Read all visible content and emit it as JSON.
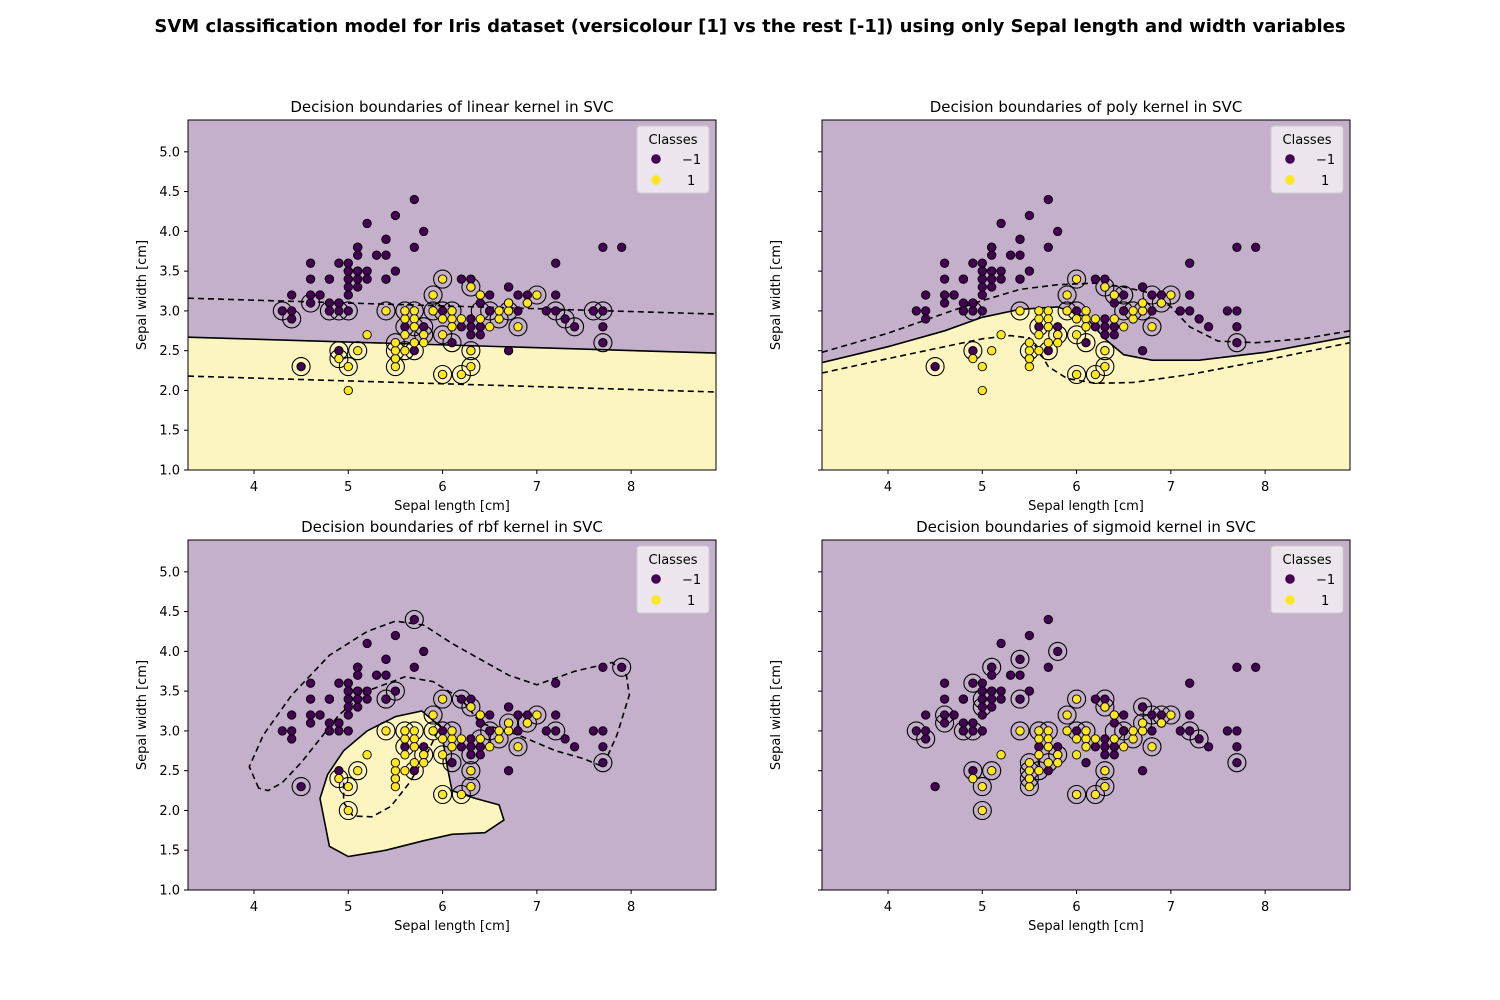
{
  "figure": {
    "suptitle": "SVM classification model for Iris dataset (versicolour [1] vs the rest [-1]) using only Sepal length and width variables"
  },
  "colors": {
    "background_neg": "#c5b0cb",
    "background_pos": "#fdf5bf",
    "class_neg": "#440154",
    "class_pos": "#fde725",
    "edge": "#000000",
    "legend_bg": "#f2eef3"
  },
  "chart_data": [
    {
      "type": "scatter",
      "title": "Decision boundaries of linear kernel in SVC",
      "xlabel": "Sepal length [cm]",
      "ylabel": "Sepal width [cm]",
      "xlim": [
        3.3,
        8.9
      ],
      "ylim": [
        1.0,
        5.4
      ],
      "xticks": [
        "4",
        "5",
        "6",
        "7",
        "8"
      ],
      "yticks": [
        "1.0",
        "1.5",
        "2.0",
        "2.5",
        "3.0",
        "3.5",
        "4.0",
        "4.5",
        "5.0"
      ],
      "show_ytick_labels": true,
      "legend": {
        "title": "Classes",
        "entries": [
          "−1",
          "1"
        ],
        "position": "upper right"
      },
      "decision_function": {
        "kind": "linear",
        "boundary_at": [
          [
            3.3,
            2.67
          ],
          [
            8.9,
            2.47
          ]
        ],
        "margin_offset": 0.49
      }
    },
    {
      "type": "scatter",
      "title": "Decision boundaries of poly kernel in SVC",
      "xlabel": "Sepal length [cm]",
      "ylabel": "Sepal width [cm]",
      "xlim": [
        3.3,
        8.9
      ],
      "ylim": [
        1.0,
        5.4
      ],
      "xticks": [
        "4",
        "5",
        "6",
        "7",
        "8"
      ],
      "yticks": [
        "1.0",
        "1.5",
        "2.0",
        "2.5",
        "3.0",
        "3.5",
        "4.0",
        "4.5",
        "5.0"
      ],
      "show_ytick_labels": false,
      "legend": {
        "title": "Classes",
        "entries": [
          "−1",
          "1"
        ],
        "position": "upper right"
      },
      "decision_function": {
        "kind": "poly"
      }
    },
    {
      "type": "scatter",
      "title": "Decision boundaries of rbf kernel in SVC",
      "xlabel": "Sepal length [cm]",
      "ylabel": "Sepal width [cm]",
      "xlim": [
        3.3,
        8.9
      ],
      "ylim": [
        1.0,
        5.4
      ],
      "xticks": [
        "4",
        "5",
        "6",
        "7",
        "8"
      ],
      "yticks": [
        "1.0",
        "1.5",
        "2.0",
        "2.5",
        "3.0",
        "3.5",
        "4.0",
        "4.5",
        "5.0"
      ],
      "show_ytick_labels": true,
      "legend": {
        "title": "Classes",
        "entries": [
          "−1",
          "1"
        ],
        "position": "upper right"
      },
      "decision_function": {
        "kind": "rbf"
      }
    },
    {
      "type": "scatter",
      "title": "Decision boundaries of sigmoid kernel in SVC",
      "xlabel": "Sepal length [cm]",
      "ylabel": "Sepal width [cm]",
      "xlim": [
        3.3,
        8.9
      ],
      "ylim": [
        1.0,
        5.4
      ],
      "xticks": [
        "4",
        "5",
        "6",
        "7",
        "8"
      ],
      "yticks": [
        "1.0",
        "1.5",
        "2.0",
        "2.5",
        "3.0",
        "3.5",
        "4.0",
        "4.5",
        "5.0"
      ],
      "show_ytick_labels": false,
      "legend": {
        "title": "Classes",
        "entries": [
          "−1",
          "1"
        ],
        "position": "upper right"
      },
      "decision_function": {
        "kind": "sigmoid"
      }
    }
  ],
  "points": {
    "class_neg": [
      [
        5.1,
        3.5
      ],
      [
        4.9,
        3.0
      ],
      [
        4.7,
        3.2
      ],
      [
        4.6,
        3.1
      ],
      [
        5.0,
        3.6
      ],
      [
        5.4,
        3.9
      ],
      [
        4.6,
        3.4
      ],
      [
        5.0,
        3.4
      ],
      [
        4.4,
        2.9
      ],
      [
        4.9,
        3.1
      ],
      [
        5.4,
        3.7
      ],
      [
        4.8,
        3.4
      ],
      [
        4.8,
        3.0
      ],
      [
        4.3,
        3.0
      ],
      [
        5.8,
        4.0
      ],
      [
        5.7,
        4.4
      ],
      [
        5.4,
        3.9
      ],
      [
        5.1,
        3.5
      ],
      [
        5.7,
        3.8
      ],
      [
        5.1,
        3.8
      ],
      [
        5.4,
        3.4
      ],
      [
        5.1,
        3.7
      ],
      [
        4.6,
        3.6
      ],
      [
        5.1,
        3.3
      ],
      [
        4.8,
        3.4
      ],
      [
        5.0,
        3.0
      ],
      [
        5.0,
        3.4
      ],
      [
        5.2,
        3.5
      ],
      [
        5.2,
        3.4
      ],
      [
        4.7,
        3.2
      ],
      [
        4.8,
        3.1
      ],
      [
        5.4,
        3.4
      ],
      [
        5.2,
        4.1
      ],
      [
        5.5,
        4.2
      ],
      [
        4.9,
        3.1
      ],
      [
        5.0,
        3.2
      ],
      [
        5.5,
        3.5
      ],
      [
        4.9,
        3.6
      ],
      [
        4.4,
        3.0
      ],
      [
        5.1,
        3.4
      ],
      [
        5.0,
        3.5
      ],
      [
        4.5,
        2.3
      ],
      [
        4.4,
        3.2
      ],
      [
        5.0,
        3.5
      ],
      [
        5.1,
        3.8
      ],
      [
        4.8,
        3.0
      ],
      [
        5.1,
        3.8
      ],
      [
        4.6,
        3.2
      ],
      [
        5.3,
        3.7
      ],
      [
        5.0,
        3.3
      ],
      [
        6.3,
        3.3
      ],
      [
        5.8,
        2.7
      ],
      [
        7.1,
        3.0
      ],
      [
        6.3,
        2.9
      ],
      [
        6.5,
        3.0
      ],
      [
        7.6,
        3.0
      ],
      [
        4.9,
        2.5
      ],
      [
        7.3,
        2.9
      ],
      [
        6.7,
        2.5
      ],
      [
        7.2,
        3.6
      ],
      [
        6.5,
        3.2
      ],
      [
        6.4,
        2.7
      ],
      [
        6.8,
        3.0
      ],
      [
        5.7,
        2.5
      ],
      [
        5.8,
        2.8
      ],
      [
        6.4,
        3.2
      ],
      [
        6.5,
        3.0
      ],
      [
        7.7,
        3.8
      ],
      [
        7.7,
        2.6
      ],
      [
        6.0,
        2.2
      ],
      [
        6.9,
        3.2
      ],
      [
        5.6,
        2.8
      ],
      [
        7.7,
        2.8
      ],
      [
        6.3,
        2.7
      ],
      [
        6.7,
        3.3
      ],
      [
        7.2,
        3.2
      ],
      [
        6.2,
        2.8
      ],
      [
        6.1,
        3.0
      ],
      [
        6.4,
        2.8
      ],
      [
        7.2,
        3.0
      ],
      [
        7.4,
        2.8
      ],
      [
        7.9,
        3.8
      ],
      [
        6.4,
        2.8
      ],
      [
        6.3,
        2.8
      ],
      [
        6.1,
        2.6
      ],
      [
        7.7,
        3.0
      ],
      [
        6.3,
        3.4
      ],
      [
        6.4,
        3.1
      ],
      [
        6.0,
        3.0
      ],
      [
        6.9,
        3.1
      ],
      [
        6.7,
        3.1
      ],
      [
        6.9,
        3.1
      ],
      [
        5.8,
        2.7
      ],
      [
        6.8,
        3.2
      ],
      [
        6.7,
        3.3
      ],
      [
        6.7,
        3.0
      ],
      [
        6.3,
        2.5
      ],
      [
        6.5,
        3.0
      ],
      [
        6.2,
        3.4
      ],
      [
        5.9,
        3.0
      ]
    ],
    "class_pos": [
      [
        7.0,
        3.2
      ],
      [
        6.4,
        3.2
      ],
      [
        6.9,
        3.1
      ],
      [
        5.5,
        2.3
      ],
      [
        6.5,
        2.8
      ],
      [
        5.7,
        2.8
      ],
      [
        6.3,
        3.3
      ],
      [
        4.9,
        2.4
      ],
      [
        6.6,
        2.9
      ],
      [
        5.2,
        2.7
      ],
      [
        5.0,
        2.0
      ],
      [
        5.9,
        3.0
      ],
      [
        6.0,
        2.2
      ],
      [
        6.1,
        2.9
      ],
      [
        5.6,
        2.9
      ],
      [
        6.7,
        3.1
      ],
      [
        5.6,
        3.0
      ],
      [
        5.8,
        2.7
      ],
      [
        6.2,
        2.2
      ],
      [
        5.6,
        2.5
      ],
      [
        5.9,
        3.2
      ],
      [
        6.1,
        2.8
      ],
      [
        6.3,
        2.5
      ],
      [
        6.1,
        2.8
      ],
      [
        6.4,
        2.9
      ],
      [
        6.6,
        3.0
      ],
      [
        6.8,
        2.8
      ],
      [
        6.7,
        3.0
      ],
      [
        6.0,
        2.9
      ],
      [
        5.7,
        2.6
      ],
      [
        5.5,
        2.4
      ],
      [
        5.5,
        2.4
      ],
      [
        5.8,
        2.7
      ],
      [
        6.0,
        2.7
      ],
      [
        5.4,
        3.0
      ],
      [
        6.0,
        3.4
      ],
      [
        6.7,
        3.1
      ],
      [
        6.3,
        2.3
      ],
      [
        5.6,
        3.0
      ],
      [
        5.5,
        2.5
      ],
      [
        5.5,
        2.6
      ],
      [
        6.1,
        3.0
      ],
      [
        5.8,
        2.6
      ],
      [
        5.0,
        2.3
      ],
      [
        5.6,
        2.7
      ],
      [
        5.7,
        3.0
      ],
      [
        5.7,
        2.9
      ],
      [
        6.2,
        2.9
      ],
      [
        5.1,
        2.5
      ],
      [
        5.7,
        2.8
      ]
    ]
  },
  "support_vectors": {
    "linear": [
      [
        4.3,
        3.0
      ],
      [
        4.4,
        2.9
      ],
      [
        4.5,
        2.3
      ],
      [
        4.6,
        3.1
      ],
      [
        4.8,
        3.0
      ],
      [
        4.9,
        3.0
      ],
      [
        4.9,
        2.5
      ],
      [
        4.9,
        2.4
      ],
      [
        5.0,
        3.0
      ],
      [
        5.0,
        2.3
      ],
      [
        5.1,
        2.5
      ],
      [
        5.4,
        3.0
      ],
      [
        5.5,
        2.6
      ],
      [
        5.5,
        2.5
      ],
      [
        5.5,
        2.3
      ],
      [
        5.6,
        3.0
      ],
      [
        5.6,
        2.8
      ],
      [
        5.6,
        2.5
      ],
      [
        5.7,
        3.0
      ],
      [
        5.7,
        2.8
      ],
      [
        5.7,
        2.5
      ],
      [
        5.8,
        2.8
      ],
      [
        5.8,
        2.7
      ],
      [
        5.9,
        3.2
      ],
      [
        5.9,
        3.0
      ],
      [
        6.0,
        3.4
      ],
      [
        6.0,
        3.0
      ],
      [
        6.0,
        2.7
      ],
      [
        6.0,
        2.2
      ],
      [
        6.1,
        3.0
      ],
      [
        6.1,
        2.6
      ],
      [
        6.2,
        2.2
      ],
      [
        6.3,
        3.3
      ],
      [
        6.3,
        2.5
      ],
      [
        6.3,
        2.3
      ],
      [
        6.4,
        3.0
      ],
      [
        6.5,
        3.0
      ],
      [
        6.6,
        2.9
      ],
      [
        6.7,
        3.0
      ],
      [
        6.8,
        2.8
      ],
      [
        7.0,
        3.2
      ],
      [
        7.2,
        3.0
      ],
      [
        7.3,
        2.9
      ],
      [
        7.4,
        2.8
      ],
      [
        7.6,
        3.0
      ],
      [
        7.7,
        3.0
      ],
      [
        7.7,
        2.6
      ]
    ],
    "poly": [
      [
        4.5,
        2.3
      ],
      [
        4.9,
        3.0
      ],
      [
        4.9,
        2.5
      ],
      [
        5.4,
        3.0
      ],
      [
        5.5,
        2.5
      ],
      [
        5.6,
        2.8
      ],
      [
        5.7,
        2.5
      ],
      [
        5.8,
        2.7
      ],
      [
        5.9,
        3.2
      ],
      [
        5.9,
        3.0
      ],
      [
        6.0,
        3.4
      ],
      [
        6.0,
        3.0
      ],
      [
        6.0,
        2.7
      ],
      [
        6.0,
        2.2
      ],
      [
        6.1,
        2.6
      ],
      [
        6.2,
        2.2
      ],
      [
        6.3,
        3.3
      ],
      [
        6.3,
        2.5
      ],
      [
        6.3,
        2.3
      ],
      [
        6.4,
        3.2
      ],
      [
        6.5,
        3.2
      ],
      [
        6.5,
        3.0
      ],
      [
        6.6,
        3.0
      ],
      [
        6.7,
        3.0
      ],
      [
        6.8,
        3.2
      ],
      [
        6.8,
        2.8
      ],
      [
        6.9,
        3.1
      ],
      [
        7.0,
        3.2
      ],
      [
        7.7,
        2.6
      ]
    ],
    "rbf": [
      [
        4.5,
        2.3
      ],
      [
        4.9,
        2.4
      ],
      [
        5.0,
        2.3
      ],
      [
        5.0,
        2.0
      ],
      [
        5.1,
        2.5
      ],
      [
        5.4,
        3.4
      ],
      [
        5.5,
        3.5
      ],
      [
        5.4,
        3.0
      ],
      [
        5.6,
        3.0
      ],
      [
        5.6,
        2.8
      ],
      [
        5.7,
        4.4
      ],
      [
        5.7,
        3.0
      ],
      [
        5.7,
        2.5
      ],
      [
        5.8,
        2.7
      ],
      [
        5.9,
        3.2
      ],
      [
        5.9,
        3.0
      ],
      [
        6.0,
        3.4
      ],
      [
        6.0,
        3.0
      ],
      [
        6.0,
        2.7
      ],
      [
        6.0,
        2.2
      ],
      [
        6.1,
        3.0
      ],
      [
        6.1,
        2.6
      ],
      [
        6.2,
        3.4
      ],
      [
        6.2,
        2.2
      ],
      [
        6.3,
        3.3
      ],
      [
        6.3,
        2.5
      ],
      [
        6.3,
        2.3
      ],
      [
        6.3,
        2.7
      ],
      [
        6.4,
        2.9
      ],
      [
        6.5,
        3.0
      ],
      [
        6.6,
        2.9
      ],
      [
        6.7,
        3.1
      ],
      [
        6.8,
        2.8
      ],
      [
        6.9,
        3.1
      ],
      [
        7.0,
        3.2
      ],
      [
        7.2,
        3.0
      ],
      [
        7.7,
        2.6
      ],
      [
        7.9,
        3.8
      ]
    ],
    "sigmoid": [
      [
        4.3,
        3.0
      ],
      [
        4.4,
        2.9
      ],
      [
        4.6,
        3.2
      ],
      [
        4.6,
        3.1
      ],
      [
        4.8,
        3.0
      ],
      [
        4.9,
        3.6
      ],
      [
        4.9,
        3.0
      ],
      [
        4.9,
        2.5
      ],
      [
        5.0,
        3.4
      ],
      [
        5.0,
        3.3
      ],
      [
        5.0,
        2.3
      ],
      [
        5.0,
        2.0
      ],
      [
        5.1,
        3.8
      ],
      [
        5.1,
        2.5
      ],
      [
        5.4,
        3.9
      ],
      [
        5.4,
        3.4
      ],
      [
        5.4,
        3.0
      ],
      [
        5.5,
        2.6
      ],
      [
        5.5,
        2.5
      ],
      [
        5.5,
        2.4
      ],
      [
        5.5,
        2.3
      ],
      [
        5.6,
        3.0
      ],
      [
        5.6,
        2.5
      ],
      [
        5.7,
        3.0
      ],
      [
        5.7,
        2.6
      ],
      [
        5.8,
        4.0
      ],
      [
        5.8,
        2.7
      ],
      [
        5.9,
        3.2
      ],
      [
        6.0,
        3.4
      ],
      [
        6.0,
        3.0
      ],
      [
        6.0,
        2.2
      ],
      [
        6.1,
        3.0
      ],
      [
        6.2,
        2.2
      ],
      [
        6.3,
        3.4
      ],
      [
        6.3,
        3.3
      ],
      [
        6.3,
        2.5
      ],
      [
        6.3,
        2.3
      ],
      [
        6.4,
        3.0
      ],
      [
        6.5,
        3.0
      ],
      [
        6.6,
        2.9
      ],
      [
        6.7,
        3.3
      ],
      [
        6.7,
        3.1
      ],
      [
        6.8,
        3.2
      ],
      [
        6.8,
        2.8
      ],
      [
        6.9,
        3.2
      ],
      [
        7.0,
        3.2
      ],
      [
        7.2,
        3.0
      ],
      [
        7.3,
        2.9
      ],
      [
        7.7,
        2.6
      ]
    ]
  }
}
